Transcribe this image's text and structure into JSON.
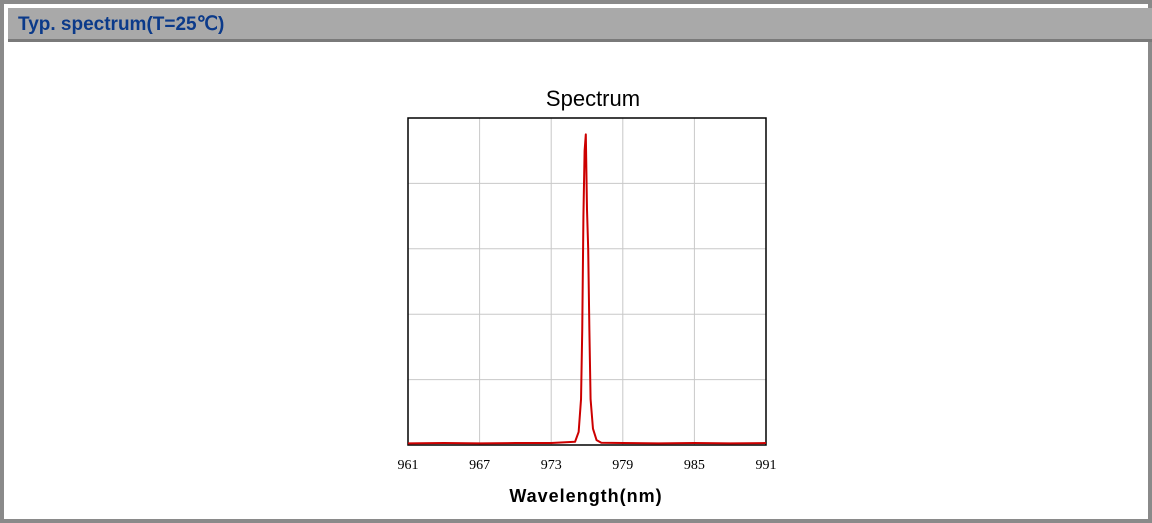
{
  "header": {
    "title": "Typ. spectrum(T=25℃)"
  },
  "colors": {
    "header_bg": "#a9a9a9",
    "header_text": "#0b3a8a",
    "line": "#cc0000",
    "grid": "#c8c8c8",
    "axis": "#000000"
  },
  "chart_data": {
    "type": "line",
    "title": "Spectrum",
    "xlabel": "Wavelength(nm)",
    "ylabel": "",
    "xlim": [
      961,
      991
    ],
    "ylim": [
      0,
      1
    ],
    "xticks": [
      961,
      967,
      973,
      979,
      985,
      991
    ],
    "grid": true,
    "series": [
      {
        "x": [
          961,
          964,
          967,
          970,
          973,
          975.0,
          975.3,
          975.5,
          975.6,
          975.7,
          975.8,
          975.9,
          976.0,
          976.1,
          976.2,
          976.3,
          976.5,
          976.8,
          977.2,
          979,
          982,
          985,
          988,
          991
        ],
        "y": [
          0.005,
          0.006,
          0.005,
          0.006,
          0.006,
          0.01,
          0.04,
          0.14,
          0.35,
          0.7,
          0.9,
          0.95,
          0.72,
          0.6,
          0.35,
          0.14,
          0.05,
          0.015,
          0.007,
          0.006,
          0.005,
          0.006,
          0.005,
          0.006
        ]
      }
    ]
  }
}
